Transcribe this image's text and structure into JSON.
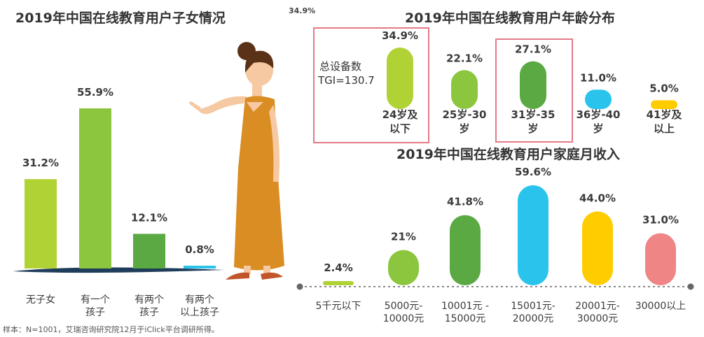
{
  "stray_label": "34.9%",
  "footnote": "样本：N=1001，艾瑞咨询研究院12月于iClick平台调研所得。",
  "tgi": {
    "line1": "总设备数",
    "line2": "TGI=130.7"
  },
  "chart_data": [
    {
      "type": "bar",
      "title": "2019年中国在线教育用户子女情况",
      "categories": [
        [
          "无子女"
        ],
        [
          "有一个",
          "孩子"
        ],
        [
          "有两个",
          "孩子"
        ],
        [
          "有两个",
          "以上孩子"
        ]
      ],
      "values": [
        31.2,
        55.9,
        12.1,
        0.8
      ],
      "labels": [
        "31.2%",
        "55.9%",
        "12.1%",
        "0.8%"
      ],
      "colors": [
        "#b0d235",
        "#8cc63f",
        "#5aa942",
        "#29c3ec"
      ]
    },
    {
      "type": "bar",
      "title": "2019年中国在线教育用户年龄分布",
      "categories": [
        [
          "24岁及",
          "以下"
        ],
        [
          "25岁-30",
          "岁"
        ],
        [
          "31岁-35",
          "岁"
        ],
        [
          "36岁-40",
          "岁"
        ],
        [
          "41岁及",
          "以上"
        ]
      ],
      "values": [
        34.9,
        22.1,
        27.1,
        11.0,
        5.0
      ],
      "labels": [
        "34.9%",
        "22.1%",
        "27.1%",
        "11.0%",
        "5.0%"
      ],
      "colors": [
        "#b0d235",
        "#8cc63f",
        "#5aa942",
        "#29c3ec",
        "#ffcc00"
      ],
      "highlighted": [
        "24岁及以下",
        "31岁-35岁"
      ]
    },
    {
      "type": "bar",
      "title": "2019年中国在线教育用户家庭月收入",
      "categories": [
        [
          "5千元以下"
        ],
        [
          "5000元-",
          "10000元"
        ],
        [
          "10001元 -",
          "15000元"
        ],
        [
          "15001元-",
          "20000元"
        ],
        [
          "20001元-",
          "30000元"
        ],
        [
          "30000以上"
        ]
      ],
      "values": [
        2.4,
        21,
        41.8,
        59.6,
        44.0,
        31.0
      ],
      "labels": [
        "2.4%",
        "21%",
        "41.8%",
        "59.6%",
        "44.0%",
        "31.0%"
      ],
      "colors": [
        "#b0d235",
        "#8cc63f",
        "#5aa942",
        "#29c3ec",
        "#ffcc00",
        "#f08585"
      ]
    }
  ]
}
